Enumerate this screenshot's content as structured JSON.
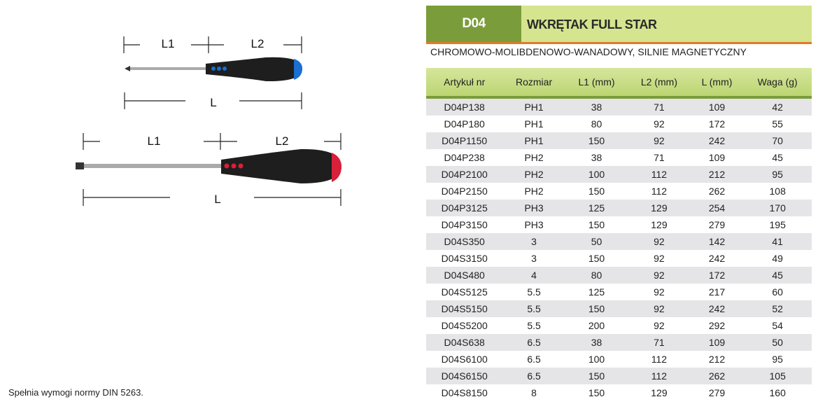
{
  "header": {
    "code": "D04",
    "title": "WKRĘTAK FULL STAR",
    "subtitle": "CHROMOWO-MOLIBDENOWO-WANADOWY, SILNIE MAGNETYCZNY"
  },
  "colors": {
    "dark_green": "#7b9c3a",
    "light_green": "#d5e48e",
    "orange": "#e07a2a",
    "blue_tip": "#1a6fd0",
    "red_tip": "#d8203a"
  },
  "diagram": {
    "l1": "L1",
    "l2": "L2",
    "l": "L"
  },
  "table": {
    "columns": [
      "Artykuł nr",
      "Rozmiar",
      "L1 (mm)",
      "L2 (mm)",
      "L (mm)",
      "Waga (g)"
    ],
    "rows": [
      [
        "D04P138",
        "PH1",
        "38",
        "71",
        "109",
        "42"
      ],
      [
        "D04P180",
        "PH1",
        "80",
        "92",
        "172",
        "55"
      ],
      [
        "D04P1150",
        "PH1",
        "150",
        "92",
        "242",
        "70"
      ],
      [
        "D04P238",
        "PH2",
        "38",
        "71",
        "109",
        "45"
      ],
      [
        "D04P2100",
        "PH2",
        "100",
        "112",
        "212",
        "95"
      ],
      [
        "D04P2150",
        "PH2",
        "150",
        "112",
        "262",
        "108"
      ],
      [
        "D04P3125",
        "PH3",
        "125",
        "129",
        "254",
        "170"
      ],
      [
        "D04P3150",
        "PH3",
        "150",
        "129",
        "279",
        "195"
      ],
      [
        "D04S350",
        "3",
        "50",
        "92",
        "142",
        "41"
      ],
      [
        "D04S3150",
        "3",
        "150",
        "92",
        "242",
        "49"
      ],
      [
        "D04S480",
        "4",
        "80",
        "92",
        "172",
        "45"
      ],
      [
        "D04S5125",
        "5.5",
        "125",
        "92",
        "217",
        "60"
      ],
      [
        "D04S5150",
        "5.5",
        "150",
        "92",
        "242",
        "52"
      ],
      [
        "D04S5200",
        "5.5",
        "200",
        "92",
        "292",
        "54"
      ],
      [
        "D04S638",
        "6.5",
        "38",
        "71",
        "109",
        "50"
      ],
      [
        "D04S6100",
        "6.5",
        "100",
        "112",
        "212",
        "95"
      ],
      [
        "D04S6150",
        "6.5",
        "150",
        "112",
        "262",
        "105"
      ],
      [
        "D04S8150",
        "8",
        "150",
        "129",
        "279",
        "160"
      ]
    ]
  },
  "note": "Spełnia wymogi normy DIN 5263."
}
